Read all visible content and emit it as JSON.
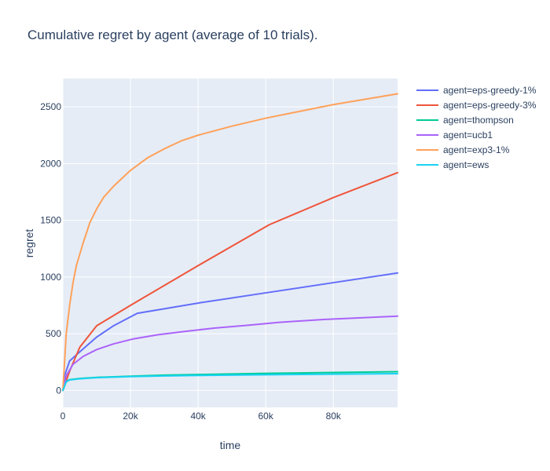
{
  "chart_data": {
    "type": "line",
    "title": "Cumulative regret by agent (average of 10 trials).",
    "xlabel": "time",
    "ylabel": "regret",
    "xlim": [
      0,
      99000
    ],
    "ylim": [
      -150,
      2750
    ],
    "x_ticks": [
      0,
      20000,
      40000,
      60000,
      80000
    ],
    "x_tick_labels": [
      "0",
      "20k",
      "40k",
      "60k",
      "80k"
    ],
    "y_ticks": [
      0,
      500,
      1000,
      1500,
      2000,
      2500
    ],
    "y_tick_labels": [
      "0",
      "500",
      "1000",
      "1500",
      "2000",
      "2500"
    ],
    "grid": true,
    "legend_position": "right",
    "series": [
      {
        "name": "agent=eps-greedy-1%",
        "color": "#636efa",
        "points": [
          [
            0,
            0
          ],
          [
            500,
            130
          ],
          [
            2000,
            260
          ],
          [
            5000,
            340
          ],
          [
            10000,
            470
          ],
          [
            15000,
            570
          ],
          [
            22000,
            680
          ],
          [
            40000,
            770
          ],
          [
            60000,
            860
          ],
          [
            80000,
            950
          ],
          [
            99000,
            1035
          ]
        ]
      },
      {
        "name": "agent=eps-greedy-3%",
        "color": "#ef553b",
        "points": [
          [
            0,
            0
          ],
          [
            2000,
            170
          ],
          [
            5000,
            380
          ],
          [
            10000,
            570
          ],
          [
            20000,
            750
          ],
          [
            40000,
            1100
          ],
          [
            61000,
            1460
          ],
          [
            80000,
            1700
          ],
          [
            99000,
            1920
          ]
        ]
      },
      {
        "name": "agent=thompson",
        "color": "#00cc96",
        "points": [
          [
            0,
            0
          ],
          [
            1000,
            80
          ],
          [
            2000,
            95
          ],
          [
            5000,
            105
          ],
          [
            10000,
            115
          ],
          [
            20000,
            125
          ],
          [
            30000,
            135
          ],
          [
            40000,
            140
          ],
          [
            60000,
            150
          ],
          [
            80000,
            158
          ],
          [
            99000,
            165
          ]
        ]
      },
      {
        "name": "agent=ucb1",
        "color": "#ab63fa",
        "points": [
          [
            0,
            0
          ],
          [
            1000,
            130
          ],
          [
            3000,
            230
          ],
          [
            6000,
            300
          ],
          [
            10000,
            360
          ],
          [
            15000,
            410
          ],
          [
            21000,
            455
          ],
          [
            28000,
            490
          ],
          [
            36000,
            520
          ],
          [
            45000,
            550
          ],
          [
            55000,
            575
          ],
          [
            64000,
            600
          ],
          [
            77000,
            625
          ],
          [
            88000,
            640
          ],
          [
            99000,
            655
          ]
        ]
      },
      {
        "name": "agent=exp3-1%",
        "color": "#ffa15a",
        "points": [
          [
            0,
            0
          ],
          [
            1000,
            500
          ],
          [
            2000,
            750
          ],
          [
            3000,
            950
          ],
          [
            4000,
            1100
          ],
          [
            6000,
            1300
          ],
          [
            8000,
            1480
          ],
          [
            10000,
            1600
          ],
          [
            12000,
            1700
          ],
          [
            15000,
            1800
          ],
          [
            20000,
            1940
          ],
          [
            25000,
            2050
          ],
          [
            30000,
            2130
          ],
          [
            35000,
            2200
          ],
          [
            40000,
            2250
          ],
          [
            50000,
            2330
          ],
          [
            60000,
            2400
          ],
          [
            70000,
            2460
          ],
          [
            80000,
            2520
          ],
          [
            90000,
            2570
          ],
          [
            99000,
            2615
          ]
        ]
      },
      {
        "name": "agent=ews",
        "color": "#19d3f3",
        "points": [
          [
            0,
            0
          ],
          [
            1000,
            75
          ],
          [
            2000,
            92
          ],
          [
            5000,
            103
          ],
          [
            10000,
            112
          ],
          [
            20000,
            122
          ],
          [
            30000,
            128
          ],
          [
            40000,
            132
          ],
          [
            60000,
            138
          ],
          [
            80000,
            143
          ],
          [
            99000,
            148
          ]
        ]
      }
    ]
  }
}
